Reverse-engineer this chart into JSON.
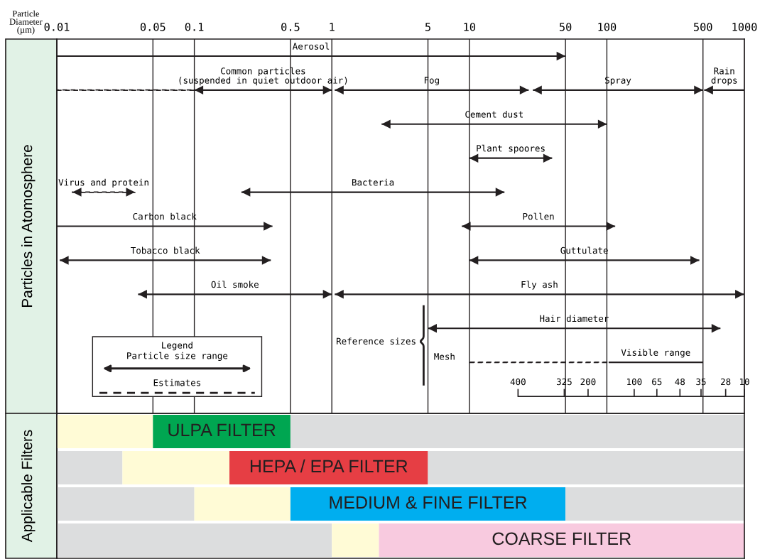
{
  "chart_data": [
    {
      "type": "bar",
      "orientation": "horizontal",
      "log": "x",
      "xlabel": "Particle\nDiameter\n(µm)",
      "ylabel": "Particles in Atomosphere",
      "categories": [
        null,
        null,
        null,
        null,
        null,
        null,
        null,
        null,
        null,
        null,
        null
      ],
      "xlim": [
        0.01,
        1000
      ],
      "xticks": [
        0.01,
        0.05,
        0.1,
        0.5,
        1,
        5,
        10,
        50,
        100,
        500,
        1000
      ],
      "grid": "x",
      "tick_labels": "x",
      "legend_title": "Legend",
      "annotations": [
        "Particle size range",
        "Estimates",
        "Reference sizes",
        "Mesh",
        "400",
        "325",
        "200",
        "100",
        "65",
        "48",
        "35",
        "28",
        "10"
      ],
      "series": [
        {
          "name": "Aerosol",
          "color": "#231f20",
          "base": [
            0.01,
            null,
            null,
            null,
            null,
            null,
            null,
            null,
            null,
            null,
            null
          ],
          "values": [
            49.99,
            null,
            null,
            null,
            null,
            null,
            null,
            null,
            null,
            null,
            null
          ]
        },
        {
          "color": "#231f20",
          "line_style": "dashed",
          "marker": "none",
          "base": [
            null,
            0.01,
            null,
            null,
            null,
            null,
            null,
            null,
            null,
            null,
            null
          ],
          "values": [
            null,
            0.09,
            null,
            null,
            null,
            null,
            null,
            null,
            null,
            null,
            null
          ]
        },
        {
          "name": "Common particles\n(suspended in quiet outdoor air)",
          "color": "#231f20",
          "base": [
            null,
            0.1,
            null,
            null,
            null,
            null,
            null,
            null,
            null,
            null,
            null
          ],
          "values": [
            null,
            0.9,
            null,
            null,
            null,
            null,
            null,
            null,
            null,
            null,
            null
          ]
        },
        {
          "name": "Fog",
          "color": "#231f20",
          "base": [
            null,
            1.05,
            null,
            null,
            null,
            null,
            null,
            null,
            null,
            null,
            null
          ],
          "values": [
            null,
            25.95,
            null,
            null,
            null,
            null,
            null,
            null,
            null,
            null,
            null
          ]
        },
        {
          "name": "Spray",
          "color": "#231f20",
          "base": [
            null,
            29,
            null,
            null,
            null,
            null,
            null,
            null,
            null,
            null,
            null
          ],
          "values": [
            null,
            471,
            null,
            null,
            null,
            null,
            null,
            null,
            null,
            null,
            null
          ]
        },
        {
          "name": "Rain\ndrops",
          "color": "#231f20",
          "base": [
            null,
            510,
            null,
            null,
            null,
            null,
            null,
            null,
            null,
            null,
            null
          ],
          "values": [
            null,
            490,
            null,
            null,
            null,
            null,
            null,
            null,
            null,
            null,
            null
          ]
        },
        {
          "name": "Cement dust",
          "color": "#231f20",
          "base": [
            null,
            null,
            2.3,
            null,
            null,
            null,
            null,
            null,
            null,
            null,
            null
          ],
          "values": [
            null,
            null,
            97.7,
            null,
            null,
            null,
            null,
            null,
            null,
            null,
            null
          ]
        },
        {
          "name": "Plant spoores",
          "color": "#231f20",
          "base": [
            null,
            null,
            null,
            10,
            null,
            null,
            null,
            null,
            null,
            null,
            null
          ],
          "values": [
            null,
            null,
            null,
            30,
            null,
            null,
            null,
            null,
            null,
            null,
            null
          ]
        },
        {
          "name": "Virus and protein",
          "color": "#231f20",
          "line_style": "dashed",
          "base": [
            null,
            null,
            null,
            null,
            0.013,
            null,
            null,
            null,
            null,
            null,
            null
          ],
          "values": [
            null,
            null,
            null,
            null,
            0.024,
            null,
            null,
            null,
            null,
            null,
            null
          ]
        },
        {
          "name": "Bacteria",
          "color": "#231f20",
          "base": [
            null,
            null,
            null,
            null,
            0.22,
            null,
            null,
            null,
            null,
            null,
            null
          ],
          "values": [
            null,
            null,
            null,
            null,
            17.78,
            null,
            null,
            null,
            null,
            null,
            null
          ]
        },
        {
          "name": "Carbon black",
          "color": "#231f20",
          "base": [
            null,
            null,
            null,
            null,
            null,
            0.01,
            null,
            null,
            null,
            null,
            null
          ],
          "values": [
            null,
            null,
            null,
            null,
            null,
            0.36,
            null,
            null,
            null,
            null,
            null
          ]
        },
        {
          "name": "Pollen",
          "color": "#231f20",
          "base": [
            null,
            null,
            null,
            null,
            null,
            8.8,
            null,
            null,
            null,
            null,
            null
          ],
          "values": [
            null,
            null,
            null,
            null,
            null,
            106.2,
            null,
            null,
            null,
            null,
            null
          ]
        },
        {
          "name": "Tobacco black",
          "color": "#231f20",
          "base": [
            null,
            null,
            null,
            null,
            null,
            null,
            0.0105,
            null,
            null,
            null,
            null
          ],
          "values": [
            null,
            null,
            null,
            null,
            null,
            null,
            0.3495,
            null,
            null,
            null,
            null
          ]
        },
        {
          "name": "Guttulate",
          "color": "#231f20",
          "base": [
            null,
            null,
            null,
            null,
            null,
            null,
            10,
            null,
            null,
            null,
            null
          ],
          "values": [
            null,
            null,
            null,
            null,
            null,
            null,
            460,
            null,
            null,
            null,
            null
          ]
        },
        {
          "name": "Oil smoke",
          "color": "#231f20",
          "base": [
            null,
            null,
            null,
            null,
            null,
            null,
            null,
            0.039,
            null,
            null,
            null
          ],
          "values": [
            null,
            null,
            null,
            null,
            null,
            null,
            null,
            0.961,
            null,
            null,
            null
          ]
        },
        {
          "name": "Fly ash",
          "color": "#231f20",
          "base": [
            null,
            null,
            null,
            null,
            null,
            null,
            null,
            1.05,
            null,
            null,
            null
          ],
          "values": [
            null,
            null,
            null,
            null,
            null,
            null,
            null,
            993.95,
            null,
            null,
            null
          ]
        },
        {
          "name": "Hair diameter",
          "color": "#231f20",
          "base": [
            null,
            null,
            null,
            null,
            null,
            null,
            null,
            null,
            5,
            null,
            null
          ],
          "values": [
            null,
            null,
            null,
            null,
            null,
            null,
            null,
            null,
            665,
            null,
            null
          ]
        },
        {
          "color": "#231f20",
          "line_style": "dashed",
          "marker": "none",
          "base": [
            null,
            null,
            null,
            null,
            null,
            null,
            null,
            null,
            null,
            10,
            null
          ],
          "values": [
            null,
            null,
            null,
            null,
            null,
            null,
            null,
            null,
            null,
            93,
            null
          ]
        },
        {
          "name": "Visible range",
          "color": "#231f20",
          "marker": "none",
          "base": [
            null,
            null,
            null,
            null,
            null,
            null,
            null,
            null,
            null,
            103,
            null
          ],
          "values": [
            null,
            null,
            null,
            null,
            null,
            null,
            null,
            null,
            null,
            397,
            null
          ]
        }
      ]
    },
    {
      "type": "bar",
      "orientation": "horizontal",
      "stacked": true,
      "log": "x",
      "ylabel": "Applicable Filters",
      "categories": [
        null,
        null,
        null,
        null
      ],
      "xlim": [
        0.01,
        1000
      ],
      "tick_labels": false,
      "series": [
        {
          "color": "#dcddde",
          "values": [
            null,
            0.03,
            0.1,
            1
          ]
        },
        {
          "color": "#fffbd6",
          "values": [
            0.05,
            0.15,
            0.4,
            1.2
          ]
        },
        {
          "name": "ULPA FILTER",
          "color": "#00a651",
          "values": [
            0.45,
            null,
            null,
            null
          ]
        },
        {
          "name": "HEPA / EPA FILTER",
          "color": "#e63e44",
          "values": [
            null,
            4.82,
            null,
            null
          ]
        },
        {
          "name": "MEDIUM & FINE FILTER",
          "color": "#00aeef",
          "values": [
            null,
            null,
            49.5,
            null
          ]
        },
        {
          "name": "COARSE FILTER",
          "color": "#f8cadf",
          "values": [
            null,
            null,
            null,
            997.8
          ]
        },
        {
          "color": "#dcddde",
          "values": [
            999.5,
            995,
            950,
            null
          ]
        }
      ]
    }
  ]
}
